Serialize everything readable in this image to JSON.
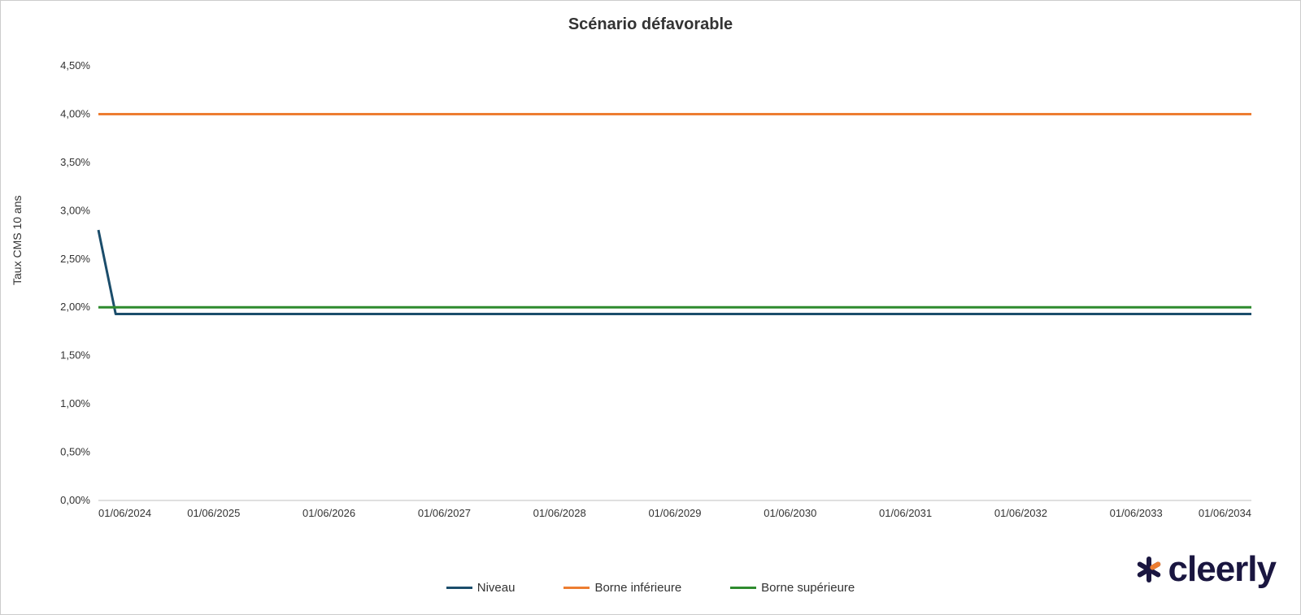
{
  "chart": {
    "type": "line",
    "title": "Scénario défavorable",
    "title_fontsize": 20,
    "title_fontweight": "bold",
    "title_color": "#333333",
    "background_color": "#ffffff",
    "border_color": "#cccccc",
    "y_axis": {
      "title": "Taux CMS 10 ans",
      "title_fontsize": 14,
      "title_color": "#333333",
      "min": 0.0,
      "max": 4.5,
      "tick_step": 0.5,
      "ticks": [
        "0,00%",
        "0,50%",
        "1,00%",
        "1,50%",
        "2,00%",
        "2,50%",
        "3,00%",
        "3,50%",
        "4,00%",
        "4,50%"
      ],
      "tick_values": [
        0.0,
        0.5,
        1.0,
        1.5,
        2.0,
        2.5,
        3.0,
        3.5,
        4.0,
        4.5
      ],
      "tick_fontsize": 13,
      "grid": false
    },
    "x_axis": {
      "ticks": [
        "01/06/2024",
        "01/06/2025",
        "01/06/2026",
        "01/06/2027",
        "01/06/2028",
        "01/06/2029",
        "01/06/2030",
        "01/06/2031",
        "01/06/2032",
        "01/06/2033",
        "01/06/2034"
      ],
      "tick_positions": [
        0,
        1,
        2,
        3,
        4,
        5,
        6,
        7,
        8,
        9,
        10
      ],
      "min": 0,
      "max": 10,
      "tick_fontsize": 13,
      "grid": false
    },
    "axis_line_color": "#bfbfbf",
    "series": [
      {
        "name": "Niveau",
        "color": "#1b4d6b",
        "line_width": 3,
        "x": [
          0,
          0.15,
          0.3,
          10
        ],
        "y": [
          2.8,
          1.93,
          1.93,
          1.93
        ]
      },
      {
        "name": "Borne inférieure",
        "color": "#ed7d31",
        "line_width": 3,
        "x": [
          0,
          10
        ],
        "y": [
          4.0,
          4.0
        ]
      },
      {
        "name": "Borne supérieure",
        "color": "#2e8b2e",
        "line_width": 3,
        "x": [
          0,
          10
        ],
        "y": [
          2.0,
          2.0
        ]
      }
    ],
    "legend": {
      "position": "bottom-center",
      "fontsize": 15,
      "items": [
        {
          "label": "Niveau",
          "color": "#1b4d6b"
        },
        {
          "label": "Borne inférieure",
          "color": "#ed7d31"
        },
        {
          "label": "Borne supérieure",
          "color": "#2e8b2e"
        }
      ]
    }
  },
  "logo": {
    "text": "cleerly",
    "text_color": "#1a1640",
    "fontsize": 44,
    "asterisk_colors": [
      "#1a1640",
      "#ed7d31"
    ]
  }
}
